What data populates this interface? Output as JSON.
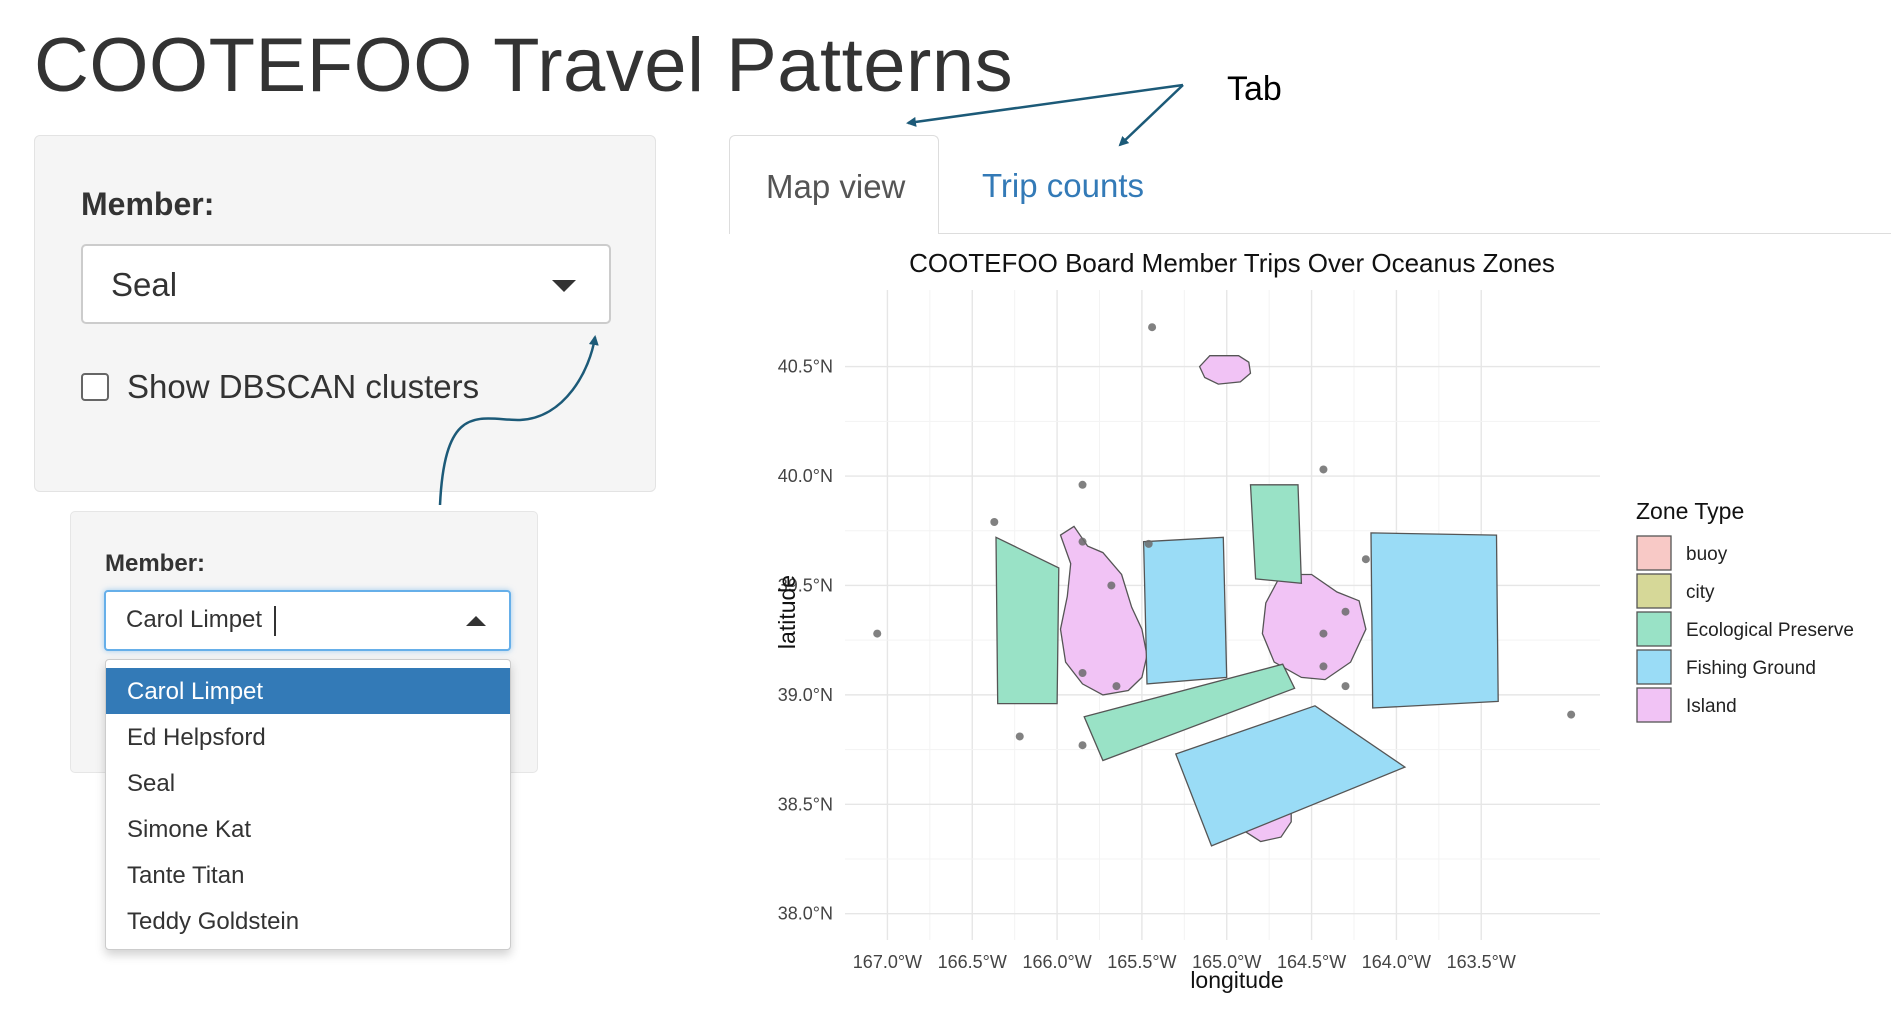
{
  "app": {
    "title": "COOTEFOO Travel Patterns"
  },
  "sidebar": {
    "member_label": "Member:",
    "member_value": "Seal",
    "dbscan_label": "Show DBSCAN clusters",
    "dbscan_checked": false
  },
  "zoom_panel": {
    "member_label": "Member:",
    "input_value": "Carol Limpet",
    "options": [
      "Carol Limpet",
      "Ed Helpsford",
      "Seal",
      "Simone Kat",
      "Tante Titan",
      "Teddy Goldstein"
    ],
    "selected_index": 0
  },
  "tabs": [
    {
      "label": "Map view",
      "active": true
    },
    {
      "label": "Trip counts",
      "active": false
    }
  ],
  "annotation": {
    "tab_callout": "Tab"
  },
  "colors": {
    "accent": "#337ab7",
    "annotation_arrow": "#1c5a78",
    "buoy": "#f8c9c6",
    "city": "#d6d898",
    "ecological_preserve": "#99e2c6",
    "fishing_ground": "#9adcf6",
    "island": "#f1c3f5"
  },
  "chart_data": {
    "type": "scatter",
    "title": "COOTEFOO Board Member Trips Over Oceanus Zones",
    "xlabel": "longitude",
    "ylabel": "latitude",
    "xlim": [
      -167.25,
      -162.8
    ],
    "ylim": [
      37.88,
      40.85
    ],
    "x_ticks": [
      -167.0,
      -166.5,
      -166.0,
      -165.5,
      -165.0,
      -164.5,
      -164.0,
      -163.5
    ],
    "x_tick_labels": [
      "167.0°W",
      "166.5°W",
      "166.0°W",
      "165.5°W",
      "165.0°W",
      "164.5°W",
      "164.0°W",
      "163.5°W"
    ],
    "y_ticks": [
      38.0,
      38.5,
      39.0,
      39.5,
      40.0,
      40.5
    ],
    "y_tick_labels": [
      "38.0°N",
      "38.5°N",
      "39.0°N",
      "39.5°N",
      "40.0°N",
      "40.5°N"
    ],
    "grid": true,
    "legend": {
      "title": "Zone Type",
      "position": "right",
      "entries": [
        {
          "name": "buoy",
          "color": "#f8c9c6"
        },
        {
          "name": "city",
          "color": "#d6d898"
        },
        {
          "name": "Ecological Preserve",
          "color": "#99e2c6"
        },
        {
          "name": "Fishing Ground",
          "color": "#9adcf6"
        },
        {
          "name": "Island",
          "color": "#f1c3f5"
        }
      ]
    },
    "zones": [
      {
        "type": "Island",
        "coords": [
          [
            -165.1,
            40.55
          ],
          [
            -164.93,
            40.55
          ],
          [
            -164.87,
            40.52
          ],
          [
            -164.86,
            40.47
          ],
          [
            -164.92,
            40.43
          ],
          [
            -165.05,
            40.42
          ],
          [
            -165.13,
            40.45
          ],
          [
            -165.16,
            40.5
          ]
        ]
      },
      {
        "type": "Island",
        "coords": [
          [
            -165.98,
            39.73
          ],
          [
            -165.9,
            39.77
          ],
          [
            -165.82,
            39.68
          ],
          [
            -165.73,
            39.65
          ],
          [
            -165.62,
            39.55
          ],
          [
            -165.56,
            39.4
          ],
          [
            -165.5,
            39.3
          ],
          [
            -165.47,
            39.18
          ],
          [
            -165.5,
            39.08
          ],
          [
            -165.58,
            39.02
          ],
          [
            -165.73,
            39.0
          ],
          [
            -165.85,
            39.05
          ],
          [
            -165.95,
            39.15
          ],
          [
            -165.98,
            39.3
          ],
          [
            -165.94,
            39.45
          ],
          [
            -165.92,
            39.6
          ]
        ]
      },
      {
        "type": "Island",
        "coords": [
          [
            -164.68,
            39.55
          ],
          [
            -164.5,
            39.55
          ],
          [
            -164.35,
            39.47
          ],
          [
            -164.22,
            39.43
          ],
          [
            -164.18,
            39.3
          ],
          [
            -164.27,
            39.15
          ],
          [
            -164.42,
            39.07
          ],
          [
            -164.56,
            39.08
          ],
          [
            -164.72,
            39.15
          ],
          [
            -164.79,
            39.28
          ],
          [
            -164.77,
            39.42
          ]
        ]
      },
      {
        "type": "Island",
        "coords": [
          [
            -164.85,
            38.57
          ],
          [
            -164.72,
            38.57
          ],
          [
            -164.62,
            38.51
          ],
          [
            -164.62,
            38.42
          ],
          [
            -164.68,
            38.35
          ],
          [
            -164.8,
            38.33
          ],
          [
            -164.9,
            38.38
          ],
          [
            -164.92,
            38.48
          ]
        ]
      },
      {
        "type": "Ecological Preserve",
        "coords": [
          [
            -166.36,
            39.72
          ],
          [
            -165.99,
            39.58
          ],
          [
            -166.0,
            38.96
          ],
          [
            -166.35,
            38.96
          ]
        ]
      },
      {
        "type": "Ecological Preserve",
        "coords": [
          [
            -164.86,
            39.96
          ],
          [
            -164.58,
            39.96
          ],
          [
            -164.56,
            39.51
          ],
          [
            -164.83,
            39.53
          ]
        ]
      },
      {
        "type": "Ecological Preserve",
        "coords": [
          [
            -165.84,
            38.9
          ],
          [
            -164.67,
            39.14
          ],
          [
            -164.6,
            39.03
          ],
          [
            -165.73,
            38.7
          ]
        ]
      },
      {
        "type": "Fishing Ground",
        "coords": [
          [
            -165.49,
            39.7
          ],
          [
            -165.02,
            39.72
          ],
          [
            -165.0,
            39.08
          ],
          [
            -165.47,
            39.05
          ]
        ]
      },
      {
        "type": "Fishing Ground",
        "coords": [
          [
            -164.15,
            39.74
          ],
          [
            -163.41,
            39.73
          ],
          [
            -163.4,
            38.97
          ],
          [
            -164.14,
            38.94
          ]
        ]
      },
      {
        "type": "Fishing Ground",
        "coords": [
          [
            -165.3,
            38.73
          ],
          [
            -164.48,
            38.95
          ],
          [
            -163.95,
            38.67
          ],
          [
            -165.09,
            38.31
          ]
        ]
      }
    ],
    "trip_points": [
      [
        -165.44,
        40.68
      ],
      [
        -164.43,
        40.03
      ],
      [
        -165.85,
        39.96
      ],
      [
        -166.37,
        39.79
      ],
      [
        -165.85,
        39.7
      ],
      [
        -165.46,
        39.69
      ],
      [
        -164.18,
        39.62
      ],
      [
        -165.68,
        39.5
      ],
      [
        -164.3,
        39.38
      ],
      [
        -164.43,
        39.28
      ],
      [
        -167.06,
        39.28
      ],
      [
        -164.43,
        39.13
      ],
      [
        -165.85,
        39.1
      ],
      [
        -165.65,
        39.04
      ],
      [
        -164.3,
        39.04
      ],
      [
        -162.97,
        38.91
      ],
      [
        -166.22,
        38.81
      ],
      [
        -165.85,
        38.77
      ]
    ]
  }
}
